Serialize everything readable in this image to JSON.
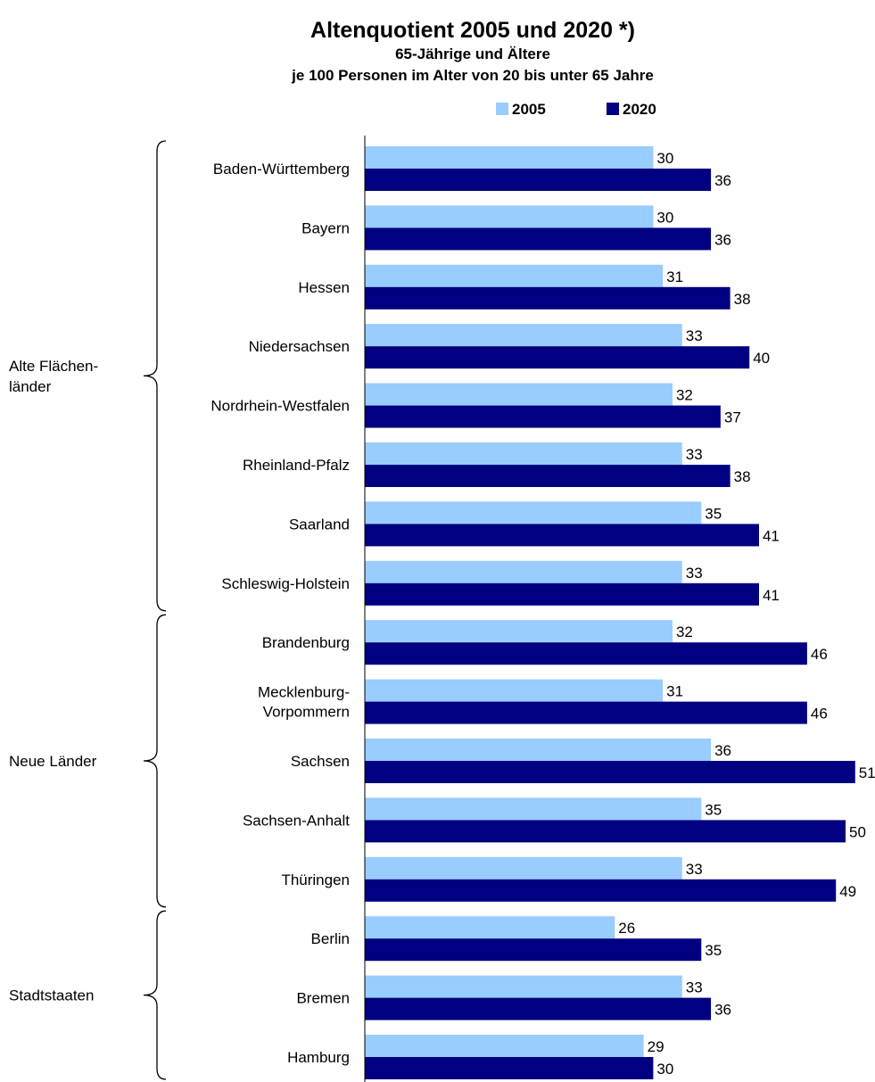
{
  "chart_data": {
    "type": "bar",
    "orientation": "horizontal",
    "title": "Altenquotient 2005 und 2020 *)",
    "subtitle_1": "65-Jährige und Ältere",
    "subtitle_2": "je 100 Personen im Alter von 20 bis unter 65 Jahre",
    "legend_position": "top",
    "xlim": [
      0,
      51
    ],
    "grid": false,
    "categories": [
      "Baden-Württemberg",
      "Bayern",
      "Hessen",
      "Niedersachsen",
      "Nordrhein-Westfalen",
      "Rheinland-Pfalz",
      "Saarland",
      "Schleswig-Holstein",
      "Brandenburg",
      "Mecklenburg-Vorpommern",
      "Sachsen",
      "Sachsen-Anhalt",
      "Thüringen",
      "Berlin",
      "Bremen",
      "Hamburg"
    ],
    "category_lines": [
      [
        "Baden-Württemberg"
      ],
      [
        "Bayern"
      ],
      [
        "Hessen"
      ],
      [
        "Niedersachsen"
      ],
      [
        "Nordrhein-Westfalen"
      ],
      [
        "Rheinland-Pfalz"
      ],
      [
        "Saarland"
      ],
      [
        "Schleswig-Holstein"
      ],
      [
        "Brandenburg"
      ],
      [
        "Mecklenburg-",
        "Vorpommern"
      ],
      [
        "Sachsen"
      ],
      [
        "Sachsen-Anhalt"
      ],
      [
        "Thüringen"
      ],
      [
        "Berlin"
      ],
      [
        "Bremen"
      ],
      [
        "Hamburg"
      ]
    ],
    "series": [
      {
        "name": "2005",
        "color": "#99ccff",
        "values": [
          30,
          30,
          31,
          33,
          32,
          33,
          35,
          33,
          32,
          31,
          36,
          35,
          33,
          26,
          33,
          29
        ]
      },
      {
        "name": "2020",
        "color": "#000080",
        "values": [
          36,
          36,
          38,
          40,
          37,
          38,
          41,
          41,
          46,
          46,
          51,
          50,
          49,
          35,
          36,
          30
        ]
      }
    ],
    "groups": [
      {
        "lines": [
          "Alte Flächen-",
          "länder"
        ],
        "start": 0,
        "end": 7
      },
      {
        "lines": [
          "Neue Länder"
        ],
        "start": 8,
        "end": 12
      },
      {
        "lines": [
          "Stadtstaaten"
        ],
        "start": 13,
        "end": 15
      }
    ]
  }
}
